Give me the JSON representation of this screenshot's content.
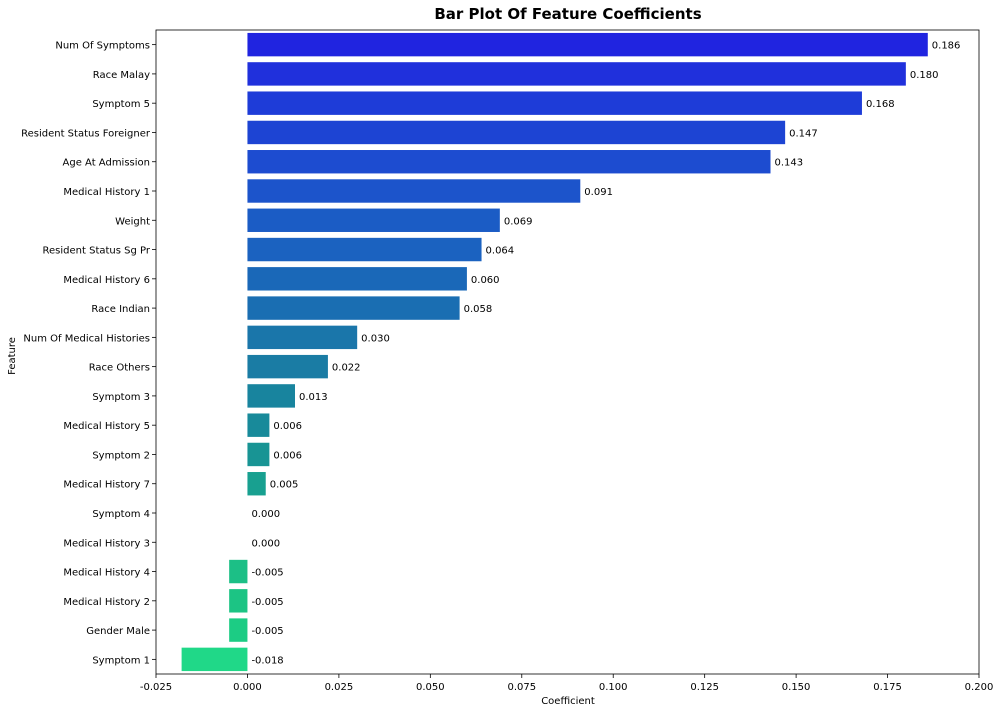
{
  "chart_data": {
    "type": "bar",
    "orientation": "horizontal",
    "title": "Bar Plot Of Feature Coefficients",
    "xlabel": "Coefficient",
    "ylabel": "Feature",
    "xlim": [
      -0.025,
      0.2
    ],
    "xticks": [
      "-0.025",
      "0.000",
      "0.025",
      "0.050",
      "0.075",
      "0.100",
      "0.125",
      "0.150",
      "0.175",
      "0.200"
    ],
    "grid": false,
    "legend": "none",
    "categories": [
      "Num Of Symptoms",
      "Race Malay",
      "Symptom 5",
      "Resident Status Foreigner",
      "Age At Admission",
      "Medical History 1",
      "Weight",
      "Resident Status Sg Pr",
      "Medical History 6",
      "Race Indian",
      "Num Of Medical Histories",
      "Race Others",
      "Symptom 3",
      "Medical History 5",
      "Symptom 2",
      "Medical History 7",
      "Symptom 4",
      "Medical History 3",
      "Medical History 4",
      "Medical History 2",
      "Gender Male",
      "Symptom 1"
    ],
    "values": [
      0.186,
      0.18,
      0.168,
      0.147,
      0.143,
      0.091,
      0.069,
      0.064,
      0.06,
      0.058,
      0.03,
      0.022,
      0.013,
      0.006,
      0.006,
      0.005,
      0.0,
      0.0,
      -0.005,
      -0.005,
      -0.005,
      -0.018
    ],
    "value_labels": [
      "0.186",
      "0.180",
      "0.168",
      "0.147",
      "0.143",
      "0.091",
      "0.069",
      "0.064",
      "0.060",
      "0.058",
      "0.030",
      "0.022",
      "0.013",
      "0.006",
      "0.006",
      "0.005",
      "0.000",
      "0.000",
      "-0.005",
      "-0.005",
      "-0.005",
      "-0.018"
    ],
    "colors": [
      "#2024e0",
      "#2030dc",
      "#1e3cd8",
      "#1d44d3",
      "#1d4cd0",
      "#1c54cb",
      "#1b5cc5",
      "#1b62c0",
      "#1a68b8",
      "#1a6eb2",
      "#1a76aa",
      "#1a7ca4",
      "#18849e",
      "#188a9a",
      "#189494",
      "#18a090",
      "#18aa8c",
      "#18b488",
      "#1cbf86",
      "#1cc484",
      "#1ccc84",
      "#20d888"
    ]
  }
}
